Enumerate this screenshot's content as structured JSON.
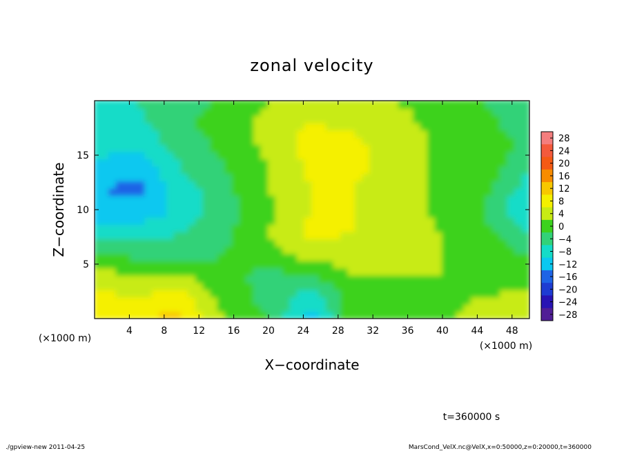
{
  "chart_data": {
    "type": "heatmap",
    "title": "zonal velocity",
    "xlabel": "X−coordinate",
    "ylabel": "Z−coordinate",
    "x_unit_label": "(×1000 m)",
    "y_unit_label": "(×1000 m)",
    "xlim": [
      0,
      50
    ],
    "ylim": [
      0,
      20
    ],
    "x_ticks": [
      4,
      8,
      12,
      16,
      20,
      24,
      28,
      32,
      36,
      40,
      44,
      48
    ],
    "y_ticks": [
      5,
      10,
      15
    ],
    "time_label": "t=360000 s",
    "colorbar": {
      "levels": [
        28,
        24,
        20,
        16,
        12,
        8,
        4,
        0,
        -4,
        -8,
        -12,
        -16,
        -20,
        -24,
        -28
      ],
      "tick_labels": [
        "28",
        "24",
        "20",
        "16",
        "12",
        "8",
        "4",
        "0",
        "−4",
        "−8",
        "−12",
        "−16",
        "−20",
        "−24",
        "−28"
      ],
      "colors": [
        "#f47e7e",
        "#f45a3c",
        "#f55a14",
        "#f88c00",
        "#f8c800",
        "#f5f000",
        "#c8eb14",
        "#3cd21e",
        "#32d278",
        "#14dcc8",
        "#0ac8f0",
        "#1e64e6",
        "#1e3cd2",
        "#2814b4",
        "#501e96"
      ]
    },
    "field": {
      "x_km": [
        0,
        5,
        10,
        15,
        20,
        25,
        30,
        35,
        40,
        45,
        50
      ],
      "z_km": [
        0,
        2,
        4,
        6,
        8,
        10,
        12,
        14,
        16,
        18,
        20
      ],
      "values": [
        [
          6,
          10,
          11,
          2,
          -2,
          -13,
          2,
          1,
          1,
          4,
          6
        ],
        [
          7,
          6,
          8,
          0,
          -3,
          -8,
          0,
          1,
          1,
          2,
          3
        ],
        [
          4,
          2,
          2,
          -1,
          -3,
          -2,
          2,
          2,
          2,
          0,
          0
        ],
        [
          -2,
          -3,
          -4,
          -2,
          0,
          4,
          4,
          2,
          2,
          0,
          -2
        ],
        [
          -8,
          -8,
          -6,
          -3,
          2,
          7,
          6,
          3,
          2,
          -1,
          -6
        ],
        [
          -12,
          -13,
          -9,
          -4,
          1,
          6,
          6,
          4,
          1,
          -2,
          -11
        ],
        [
          -14,
          -15,
          -8,
          -3,
          2,
          6,
          6,
          4,
          1,
          -1,
          -8
        ],
        [
          -11,
          -13,
          -6,
          -2,
          2,
          7,
          7,
          4,
          1,
          0,
          -5
        ],
        [
          -8,
          -9,
          -4,
          -1,
          3,
          8,
          7,
          4,
          1,
          0,
          -3
        ],
        [
          -7,
          -7,
          -3,
          0,
          3,
          6,
          5,
          3,
          1,
          -1,
          -4
        ],
        [
          -7,
          -6,
          -4,
          -1,
          2,
          4,
          4,
          2,
          0,
          -2,
          -4
        ]
      ]
    }
  },
  "footer": {
    "left": "./gpview-new   2011-04-25",
    "right": "MarsCond_VelX.nc@VelX,x=0:50000,z=0:20000,t=360000"
  }
}
